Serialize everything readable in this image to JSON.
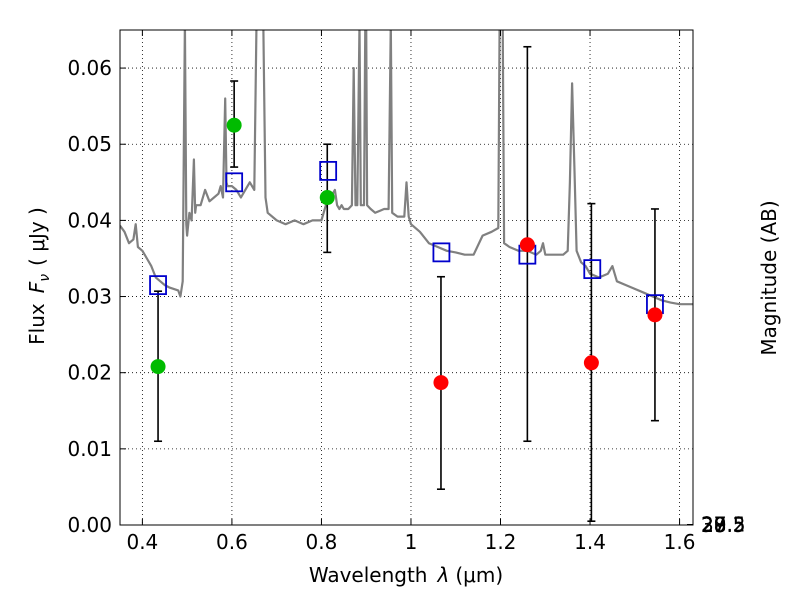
{
  "chart_data": {
    "type": "scatter",
    "xlabel": {
      "prefix": "Wavelength",
      "symbol": "λ",
      "unit": "(μm)"
    },
    "ylabel": {
      "prefix": "Flux",
      "symbol_base": "F",
      "symbol_sub": "ν",
      "unit": "( μJy )"
    },
    "y2label": "Magnitude (AB)",
    "xlim": [
      0.35,
      1.63
    ],
    "ylim": [
      0.0,
      0.065
    ],
    "grid": true,
    "xticks": [
      {
        "value": 0.4,
        "label": "0.4"
      },
      {
        "value": 0.6,
        "label": "0.6"
      },
      {
        "value": 0.8,
        "label": "0.8"
      },
      {
        "value": 1.0,
        "label": "1"
      },
      {
        "value": 1.2,
        "label": "1.2"
      },
      {
        "value": 1.4,
        "label": "1.4"
      },
      {
        "value": 1.6,
        "label": "1.6"
      }
    ],
    "yticks": [
      {
        "value": 0.0,
        "label": "0.00"
      },
      {
        "value": 0.01,
        "label": "0.01"
      },
      {
        "value": 0.02,
        "label": "0.02"
      },
      {
        "value": 0.03,
        "label": "0.03"
      },
      {
        "value": 0.04,
        "label": "0.04"
      },
      {
        "value": 0.05,
        "label": "0.05"
      },
      {
        "value": 0.06,
        "label": "0.06"
      }
    ],
    "y2ticks": [
      {
        "value": 27.0,
        "label": "27"
      },
      {
        "value": 27.2,
        "label": "27.2"
      },
      {
        "value": 27.5,
        "label": "27.5"
      },
      {
        "value": 28.0,
        "label": "28"
      },
      {
        "value": 28.5,
        "label": "28.5"
      },
      {
        "value": 29.0,
        "label": "29"
      },
      {
        "value": 30.0,
        "label": "30"
      }
    ],
    "colors": {
      "model": "#808080",
      "detected": "#00bb00",
      "upper": "#ff0000",
      "synthetic": "#0000cc",
      "error": "#000000"
    },
    "model_spectrum": [
      [
        0.35,
        0.0393
      ],
      [
        0.36,
        0.0385
      ],
      [
        0.37,
        0.037
      ],
      [
        0.38,
        0.0375
      ],
      [
        0.385,
        0.0395
      ],
      [
        0.39,
        0.0365
      ],
      [
        0.4,
        0.036
      ],
      [
        0.41,
        0.035
      ],
      [
        0.42,
        0.034
      ],
      [
        0.43,
        0.0325
      ],
      [
        0.44,
        0.032
      ],
      [
        0.45,
        0.0315
      ],
      [
        0.46,
        0.0312
      ],
      [
        0.47,
        0.031
      ],
      [
        0.48,
        0.0308
      ],
      [
        0.485,
        0.03
      ],
      [
        0.49,
        0.032
      ],
      [
        0.495,
        0.066
      ],
      [
        0.498,
        0.0395
      ],
      [
        0.5,
        0.038
      ],
      [
        0.505,
        0.041
      ],
      [
        0.51,
        0.04
      ],
      [
        0.515,
        0.048
      ],
      [
        0.518,
        0.041
      ],
      [
        0.52,
        0.042
      ],
      [
        0.53,
        0.042
      ],
      [
        0.54,
        0.044
      ],
      [
        0.55,
        0.0425
      ],
      [
        0.56,
        0.043
      ],
      [
        0.57,
        0.0435
      ],
      [
        0.575,
        0.0445
      ],
      [
        0.58,
        0.043
      ],
      [
        0.585,
        0.056
      ],
      [
        0.588,
        0.045
      ],
      [
        0.59,
        0.0445
      ],
      [
        0.6,
        0.0445
      ],
      [
        0.61,
        0.044
      ],
      [
        0.62,
        0.043
      ],
      [
        0.63,
        0.044
      ],
      [
        0.64,
        0.045
      ],
      [
        0.65,
        0.044
      ],
      [
        0.655,
        0.066
      ],
      [
        0.66,
        0.066
      ],
      [
        0.665,
        0.066
      ],
      [
        0.67,
        0.066
      ],
      [
        0.675,
        0.043
      ],
      [
        0.68,
        0.041
      ],
      [
        0.7,
        0.04
      ],
      [
        0.72,
        0.0395
      ],
      [
        0.74,
        0.04
      ],
      [
        0.76,
        0.0395
      ],
      [
        0.78,
        0.04
      ],
      [
        0.8,
        0.04
      ],
      [
        0.81,
        0.042
      ],
      [
        0.82,
        0.043
      ],
      [
        0.83,
        0.044
      ],
      [
        0.835,
        0.042
      ],
      [
        0.84,
        0.0415
      ],
      [
        0.845,
        0.042
      ],
      [
        0.85,
        0.0415
      ],
      [
        0.86,
        0.0415
      ],
      [
        0.868,
        0.042
      ],
      [
        0.872,
        0.06
      ],
      [
        0.876,
        0.042
      ],
      [
        0.88,
        0.042
      ],
      [
        0.885,
        0.066
      ],
      [
        0.888,
        0.042
      ],
      [
        0.895,
        0.042
      ],
      [
        0.898,
        0.066
      ],
      [
        0.9,
        0.066
      ],
      [
        0.902,
        0.042
      ],
      [
        0.91,
        0.0415
      ],
      [
        0.92,
        0.041
      ],
      [
        0.94,
        0.0415
      ],
      [
        0.95,
        0.0415
      ],
      [
        0.955,
        0.066
      ],
      [
        0.958,
        0.041
      ],
      [
        0.97,
        0.0405
      ],
      [
        0.985,
        0.0405
      ],
      [
        0.99,
        0.045
      ],
      [
        0.995,
        0.0405
      ],
      [
        1.0,
        0.0395
      ],
      [
        1.02,
        0.0385
      ],
      [
        1.04,
        0.037
      ],
      [
        1.06,
        0.0365
      ],
      [
        1.08,
        0.036
      ],
      [
        1.1,
        0.0358
      ],
      [
        1.12,
        0.0355
      ],
      [
        1.14,
        0.0355
      ],
      [
        1.16,
        0.038
      ],
      [
        1.18,
        0.0385
      ],
      [
        1.195,
        0.039
      ],
      [
        1.198,
        0.066
      ],
      [
        1.205,
        0.066
      ],
      [
        1.208,
        0.037
      ],
      [
        1.22,
        0.0365
      ],
      [
        1.24,
        0.036
      ],
      [
        1.26,
        0.036
      ],
      [
        1.28,
        0.0355
      ],
      [
        1.29,
        0.036
      ],
      [
        1.295,
        0.037
      ],
      [
        1.3,
        0.0355
      ],
      [
        1.32,
        0.0355
      ],
      [
        1.34,
        0.0355
      ],
      [
        1.35,
        0.036
      ],
      [
        1.355,
        0.045
      ],
      [
        1.36,
        0.058
      ],
      [
        1.365,
        0.047
      ],
      [
        1.37,
        0.036
      ],
      [
        1.38,
        0.0345
      ],
      [
        1.39,
        0.034
      ],
      [
        1.4,
        0.033
      ],
      [
        1.42,
        0.0325
      ],
      [
        1.44,
        0.033
      ],
      [
        1.45,
        0.034
      ],
      [
        1.46,
        0.032
      ],
      [
        1.48,
        0.0315
      ],
      [
        1.5,
        0.031
      ],
      [
        1.52,
        0.0305
      ],
      [
        1.54,
        0.03
      ],
      [
        1.56,
        0.0295
      ],
      [
        1.58,
        0.0292
      ],
      [
        1.6,
        0.029
      ],
      [
        1.63,
        0.029
      ]
    ],
    "synthetic_points": [
      {
        "x": 0.435,
        "y": 0.0315
      },
      {
        "x": 0.605,
        "y": 0.045
      },
      {
        "x": 0.815,
        "y": 0.0465
      },
      {
        "x": 1.068,
        "y": 0.0358
      },
      {
        "x": 1.26,
        "y": 0.0355
      },
      {
        "x": 1.405,
        "y": 0.0336
      },
      {
        "x": 1.545,
        "y": 0.029
      }
    ],
    "observed_points": [
      {
        "x": 0.435,
        "y": 0.0208,
        "ylow": 0.011,
        "yhigh": 0.0307,
        "kind": "detected"
      },
      {
        "x": 0.605,
        "y": 0.0525,
        "ylow": 0.047,
        "yhigh": 0.0583,
        "kind": "detected"
      },
      {
        "x": 0.813,
        "y": 0.043,
        "ylow": 0.0358,
        "yhigh": 0.05,
        "kind": "detected"
      },
      {
        "x": 1.067,
        "y": 0.0187,
        "ylow": 0.0047,
        "yhigh": 0.0326,
        "kind": "upper"
      },
      {
        "x": 1.26,
        "y": 0.0368,
        "ylow": 0.011,
        "yhigh": 0.0628,
        "kind": "upper"
      },
      {
        "x": 1.403,
        "y": 0.0213,
        "ylow": 0.0005,
        "yhigh": 0.0422,
        "kind": "upper"
      },
      {
        "x": 1.545,
        "y": 0.0276,
        "ylow": 0.0137,
        "yhigh": 0.0415,
        "kind": "upper"
      }
    ]
  }
}
